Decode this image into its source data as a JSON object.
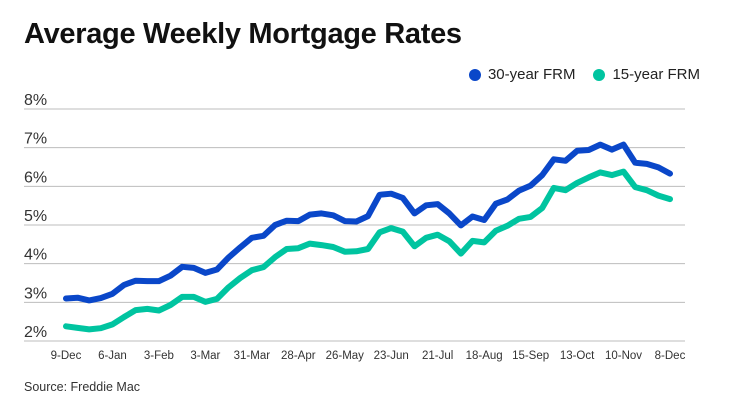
{
  "chart_data": {
    "type": "line",
    "title": "Average Weekly Mortgage Rates",
    "source": "Source: Freddie Mac",
    "ylim": [
      2,
      8
    ],
    "yticks": [
      2,
      3,
      4,
      5,
      6,
      7,
      8
    ],
    "ytick_labels": [
      "2%",
      "3%",
      "4%",
      "5%",
      "6%",
      "7%",
      "8%"
    ],
    "grid": true,
    "legend_placement": "top-right",
    "xtick_labels": [
      "9-Dec",
      "6-Jan",
      "3-Feb",
      "3-Mar",
      "31-Mar",
      "28-Apr",
      "26-May",
      "23-Jun",
      "21-Jul",
      "18-Aug",
      "15-Sep",
      "13-Oct",
      "10-Nov",
      "8-Dec"
    ],
    "series": [
      {
        "name": "30-year FRM",
        "color": "#0a47c9",
        "values": [
          3.1,
          3.12,
          3.05,
          3.11,
          3.22,
          3.45,
          3.56,
          3.55,
          3.55,
          3.69,
          3.92,
          3.89,
          3.76,
          3.85,
          4.16,
          4.42,
          4.67,
          4.72,
          5.0,
          5.11,
          5.1,
          5.27,
          5.3,
          5.25,
          5.1,
          5.09,
          5.23,
          5.78,
          5.81,
          5.7,
          5.3,
          5.51,
          5.54,
          5.3,
          4.99,
          5.22,
          5.13,
          5.55,
          5.66,
          5.89,
          6.02,
          6.29,
          6.7,
          6.66,
          6.92,
          6.94,
          7.08,
          6.95,
          7.08,
          6.61,
          6.58,
          6.49,
          6.33
        ]
      },
      {
        "name": "15-year FRM",
        "color": "#00c4a0",
        "values": [
          2.38,
          2.34,
          2.3,
          2.33,
          2.43,
          2.62,
          2.8,
          2.83,
          2.79,
          2.93,
          3.14,
          3.14,
          3.01,
          3.09,
          3.39,
          3.63,
          3.83,
          3.91,
          4.17,
          4.38,
          4.4,
          4.52,
          4.48,
          4.43,
          4.31,
          4.32,
          4.38,
          4.81,
          4.92,
          4.83,
          4.45,
          4.67,
          4.75,
          4.58,
          4.26,
          4.59,
          4.55,
          4.85,
          4.98,
          5.16,
          5.21,
          5.44,
          5.96,
          5.9,
          6.09,
          6.23,
          6.36,
          6.29,
          6.38,
          5.98,
          5.9,
          5.76,
          5.67
        ]
      }
    ]
  }
}
